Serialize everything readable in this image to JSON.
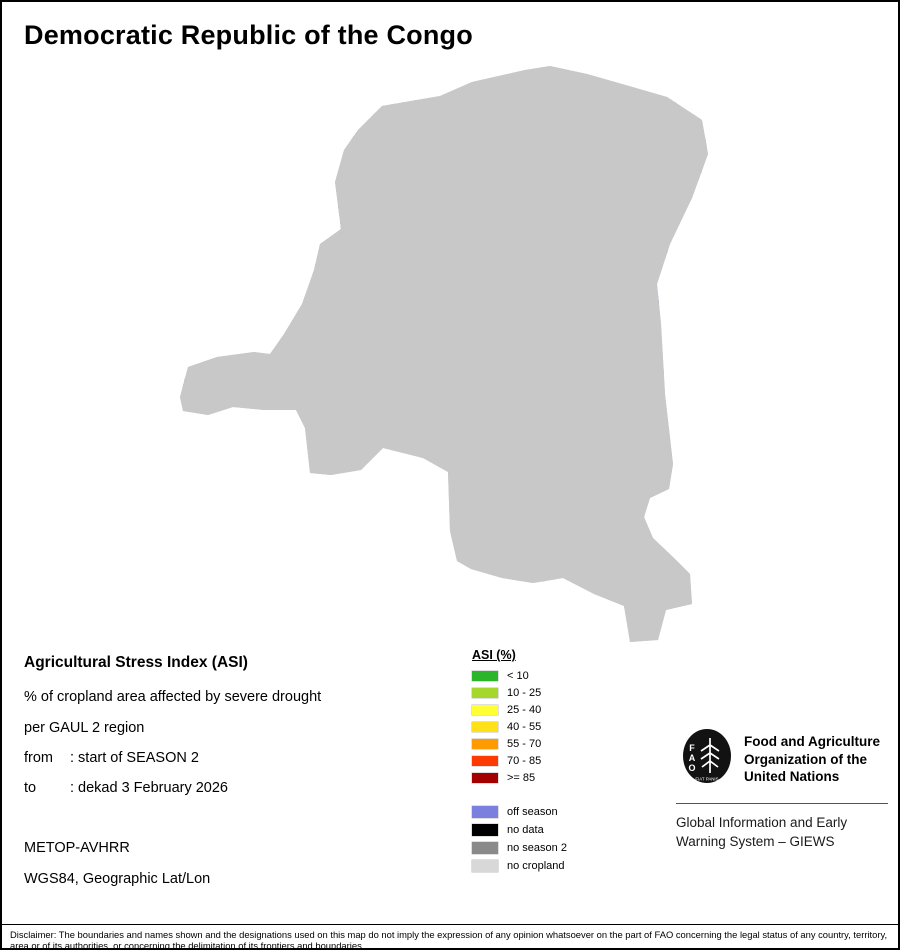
{
  "title": "Democratic Republic of the Congo",
  "info": {
    "heading": "Agricultural Stress Index (ASI)",
    "line1": "% of cropland area affected by severe drought",
    "line2": "per GAUL 2 region",
    "from_label": "from",
    "from_value": ": start of SEASON 2",
    "to_label": "to",
    "to_value": ": dekad 3 February 2026",
    "sensor": "METOP-AVHRR",
    "projection": "WGS84, Geographic Lat/Lon"
  },
  "legend": {
    "header": "ASI (%)",
    "classes": [
      {
        "label": "< 10",
        "color": "#2bb52b"
      },
      {
        "label": "10 - 25",
        "color": "#a4d82c"
      },
      {
        "label": "25 - 40",
        "color": "#ffff33"
      },
      {
        "label": "40 - 55",
        "color": "#ffe11a"
      },
      {
        "label": "55 - 70",
        "color": "#ff9a00"
      },
      {
        "label": "70 - 85",
        "color": "#fb3b01"
      },
      {
        "label": ">= 85",
        "color": "#a40000"
      }
    ],
    "extra": [
      {
        "label": "off season",
        "color": "#7b80de"
      },
      {
        "label": "no data",
        "color": "#000000"
      },
      {
        "label": "no season 2",
        "color": "#8a8a8a"
      },
      {
        "label": "no cropland",
        "color": "#d8d8d8"
      }
    ]
  },
  "branding": {
    "org_line1": "Food and Agriculture",
    "org_line2": "Organization of the",
    "org_line3": "United Nations",
    "giews_line1": "Global Information and Early",
    "giews_line2": "Warning System – GIEWS",
    "logo_text": "FAO",
    "logo_motto": "FIAT PANIS"
  },
  "map": {
    "colors": {
      "land": "#c8c8c8",
      "off_season": "#7b80de",
      "no_season2": "#8a8a8a",
      "water": "#ffffff",
      "outline": "#151515"
    }
  },
  "disclaimer": "Disclaimer: The boundaries and names shown and the designations used on this map do not imply the expression of any opinion whatsoever on the part of FAO concerning the legal status of any country, territory, area or of its authorities, or concerning the delimitation of its frontiers and boundaries."
}
